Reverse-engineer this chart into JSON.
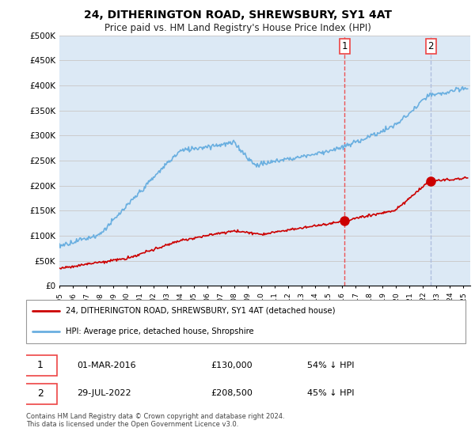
{
  "title": "24, DITHERINGTON ROAD, SHREWSBURY, SY1 4AT",
  "subtitle": "Price paid vs. HM Land Registry's House Price Index (HPI)",
  "ylim": [
    0,
    500000
  ],
  "xlim_start": 1995.0,
  "xlim_end": 2025.5,
  "transaction1": {
    "date_num": 2016.17,
    "value": 130000,
    "label": "1",
    "text": "01-MAR-2016",
    "price": "£130,000",
    "pct": "54% ↓ HPI"
  },
  "transaction2": {
    "date_num": 2022.58,
    "value": 208500,
    "label": "2",
    "text": "29-JUL-2022",
    "price": "£208,500",
    "pct": "45% ↓ HPI"
  },
  "legend_line1": "24, DITHERINGTON ROAD, SHREWSBURY, SY1 4AT (detached house)",
  "legend_line2": "HPI: Average price, detached house, Shropshire",
  "footer": "Contains HM Land Registry data © Crown copyright and database right 2024.\nThis data is licensed under the Open Government Licence v3.0.",
  "hpi_color": "#6aafe0",
  "price_color": "#cc0000",
  "vline1_color": "#ee4444",
  "vline2_color": "#aabbdd",
  "dot_color": "#cc0000",
  "grid_color": "#cccccc",
  "background_color": "#dce9f5",
  "plot_bg": "#dce9f5"
}
